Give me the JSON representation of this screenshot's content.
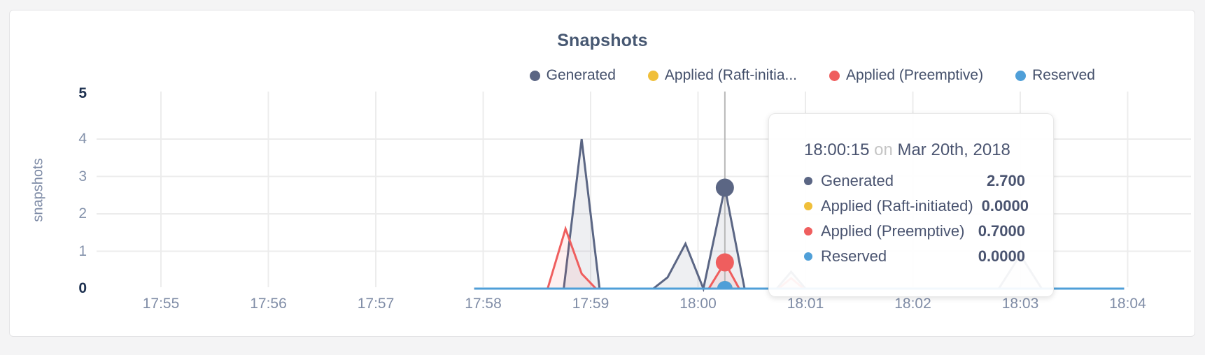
{
  "chart_data": {
    "type": "area",
    "title": "Snapshots",
    "ylabel": "snapshots",
    "xlabel": "",
    "x_ticks": [
      "17:55",
      "17:56",
      "17:57",
      "17:58",
      "17:59",
      "18:00",
      "18:01",
      "18:02",
      "18:03",
      "18:04"
    ],
    "y_ticks": [
      0,
      1,
      2,
      3,
      4,
      5
    ],
    "ylim": [
      0,
      5
    ],
    "grid": true,
    "legend_position": "top-right",
    "x_unit": "seconds after 17:55:00 on Mar 20th, 2018",
    "series": [
      {
        "name": "Generated",
        "color": "#5b6684",
        "fill": "rgba(91,102,132,0.10)",
        "points": [
          [
            175,
            0
          ],
          [
            225,
            0
          ],
          [
            235,
            4.0
          ],
          [
            245,
            0
          ],
          [
            275,
            0
          ],
          [
            283,
            0.3
          ],
          [
            293,
            1.2
          ],
          [
            303,
            0
          ],
          [
            315,
            2.7
          ],
          [
            326,
            0
          ],
          [
            344,
            0
          ],
          [
            352,
            0.45
          ],
          [
            360,
            0
          ],
          [
            468,
            0
          ],
          [
            480,
            0.9
          ],
          [
            492,
            0
          ],
          [
            538,
            0
          ]
        ]
      },
      {
        "name": "Applied (Raft-initiated)",
        "color": "#f0bf3a",
        "fill": "none",
        "points": [
          [
            175,
            0
          ],
          [
            538,
            0
          ]
        ]
      },
      {
        "name": "Applied (Preemptive)",
        "color": "#ef5e5e",
        "fill": "rgba(239,94,94,0.09)",
        "points": [
          [
            175,
            0
          ],
          [
            216,
            0
          ],
          [
            226,
            1.6
          ],
          [
            235,
            0.4
          ],
          [
            243,
            0
          ],
          [
            306,
            0
          ],
          [
            315,
            0.7
          ],
          [
            323,
            0
          ],
          [
            345,
            0
          ],
          [
            352,
            0.28
          ],
          [
            359,
            0
          ],
          [
            538,
            0
          ]
        ]
      },
      {
        "name": "Reserved",
        "color": "#4f9fd8",
        "fill": "none",
        "points": [
          [
            175,
            0
          ],
          [
            538,
            0
          ]
        ]
      }
    ],
    "hover": {
      "time_label": "18:00:15",
      "time_seconds": 315,
      "values": [
        2.7,
        0.0,
        0.7,
        0.0
      ]
    }
  },
  "legend": {
    "items": [
      {
        "label": "Generated",
        "color": "#5b6684"
      },
      {
        "label": "Applied (Raft-initia...",
        "color": "#f0bf3a"
      },
      {
        "label": "Applied (Preemptive)",
        "color": "#ef5e5e"
      },
      {
        "label": "Reserved",
        "color": "#4f9fd8"
      }
    ]
  },
  "tooltip": {
    "time": "18:00:15",
    "separator": "on",
    "date": "Mar 20th, 2018",
    "rows": [
      {
        "label": "Generated",
        "value": "2.700",
        "color": "#5b6684"
      },
      {
        "label": "Applied (Raft-initiated)",
        "value": "0.0000",
        "color": "#f0bf3a"
      },
      {
        "label": "Applied (Preemptive)",
        "value": "0.7000",
        "color": "#ef5e5e"
      },
      {
        "label": "Reserved",
        "value": "0.0000",
        "color": "#4f9fd8"
      }
    ]
  }
}
